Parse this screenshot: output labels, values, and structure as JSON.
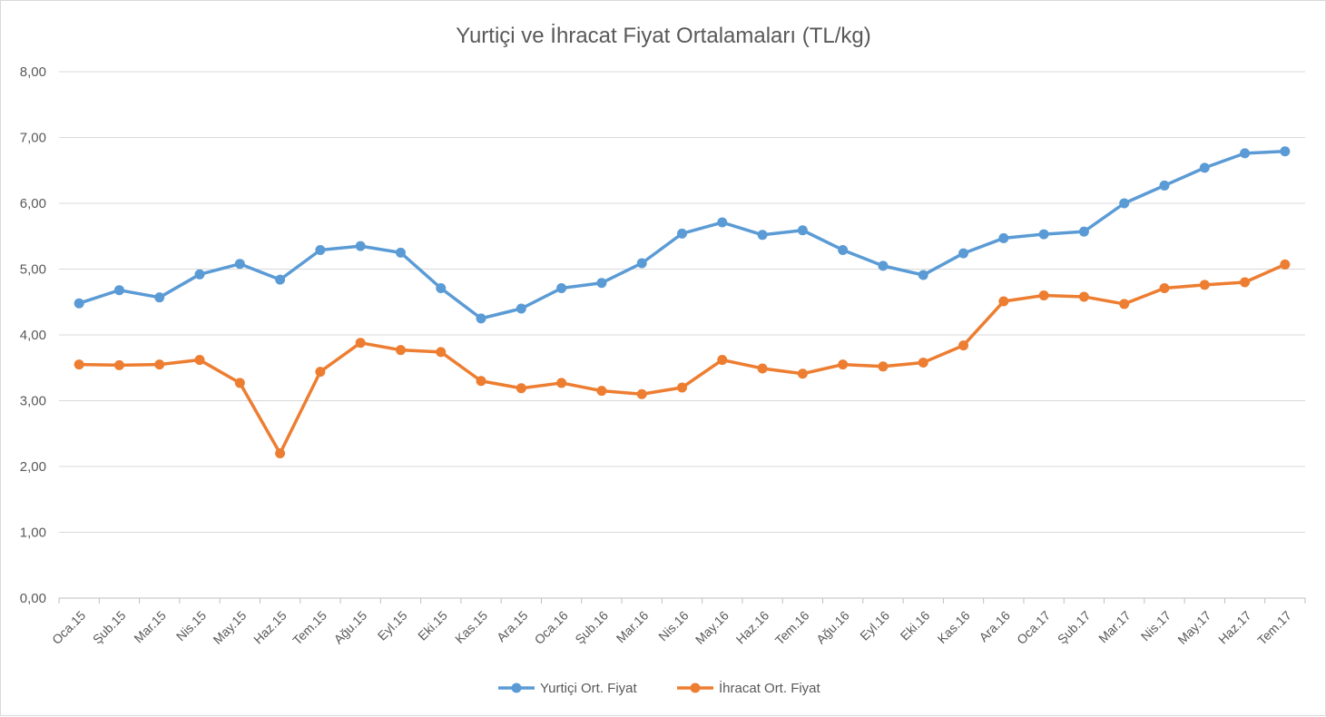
{
  "chart_data": {
    "type": "line",
    "title": "Yurtiçi ve İhracat Fiyat Ortalamaları (TL/kg)",
    "xlabel": "",
    "ylabel": "",
    "ylim": [
      0,
      8
    ],
    "yticks": [
      "0,00",
      "1,00",
      "2,00",
      "3,00",
      "4,00",
      "5,00",
      "6,00",
      "7,00",
      "8,00"
    ],
    "grid": true,
    "legend_position": "bottom",
    "categories": [
      "Oca.15",
      "Şub.15",
      "Mar.15",
      "Nis.15",
      "May.15",
      "Haz.15",
      "Tem.15",
      "Ağu.15",
      "Eyl.15",
      "Eki.15",
      "Kas.15",
      "Ara.15",
      "Oca.16",
      "Şub.16",
      "Mar.16",
      "Nis.16",
      "May.16",
      "Haz.16",
      "Tem.16",
      "Ağu.16",
      "Eyl.16",
      "Eki.16",
      "Kas.16",
      "Ara.16",
      "Oca.17",
      "Şub.17",
      "Mar.17",
      "Nis.17",
      "May.17",
      "Haz.17",
      "Tem.17"
    ],
    "series": [
      {
        "name": "Yurtiçi Ort. Fiyat",
        "color": "#5b9bd5",
        "values": [
          4.48,
          4.68,
          4.57,
          4.92,
          5.08,
          4.84,
          5.29,
          5.35,
          5.25,
          4.71,
          4.25,
          4.4,
          4.71,
          4.79,
          5.09,
          5.54,
          5.71,
          5.52,
          5.59,
          5.29,
          5.05,
          4.91,
          5.24,
          5.47,
          5.53,
          5.57,
          6.0,
          6.27,
          6.54,
          6.76,
          6.79
        ]
      },
      {
        "name": "İhracat Ort. Fiyat",
        "color": "#ed7d31",
        "values": [
          3.55,
          3.54,
          3.55,
          3.62,
          3.27,
          2.2,
          3.44,
          3.88,
          3.77,
          3.74,
          3.3,
          3.19,
          3.27,
          3.15,
          3.1,
          3.2,
          3.62,
          3.49,
          3.41,
          3.55,
          3.52,
          3.58,
          3.84,
          4.51,
          4.6,
          4.58,
          4.47,
          4.71,
          4.76,
          4.8,
          5.07
        ]
      }
    ]
  }
}
